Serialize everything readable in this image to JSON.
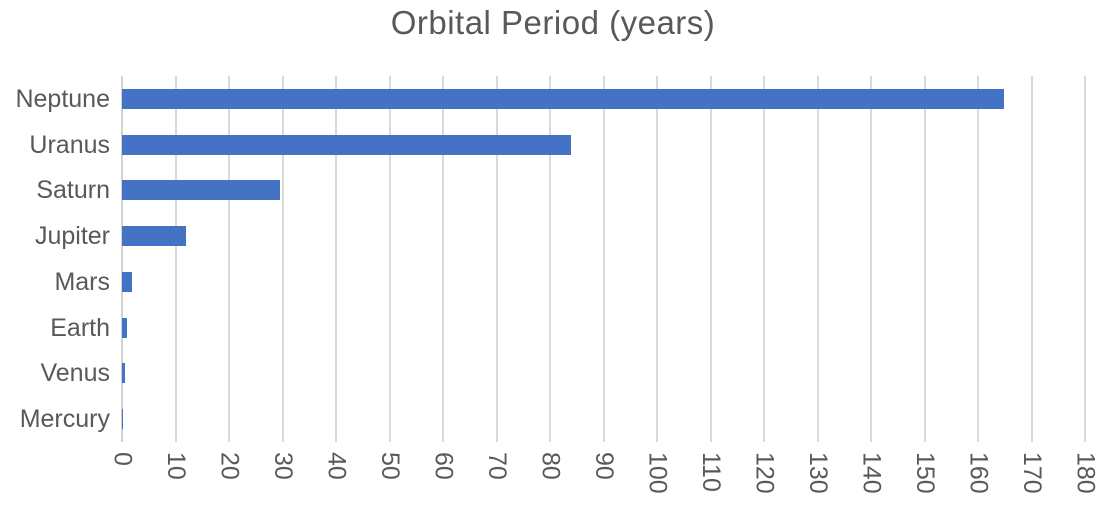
{
  "chart_data": {
    "type": "bar",
    "orientation": "horizontal",
    "title": "Orbital Period (years)",
    "categories": [
      "Neptune",
      "Uranus",
      "Saturn",
      "Jupiter",
      "Mars",
      "Earth",
      "Venus",
      "Mercury"
    ],
    "values": [
      164.8,
      84.0,
      29.5,
      11.9,
      1.88,
      1.0,
      0.62,
      0.24
    ],
    "xlabel": "",
    "ylabel": "",
    "xlim": [
      0,
      180
    ],
    "xticks": [
      0,
      10,
      20,
      30,
      40,
      50,
      60,
      70,
      80,
      90,
      100,
      110,
      120,
      130,
      140,
      150,
      160,
      170,
      180
    ],
    "tick_label_rotation_deg": 90,
    "grid": true,
    "legend": false,
    "colors": {
      "bar": "#4472C4",
      "gridline": "#D9D9D9",
      "axis_line": "#D3D3D3",
      "text": "#595959"
    }
  }
}
